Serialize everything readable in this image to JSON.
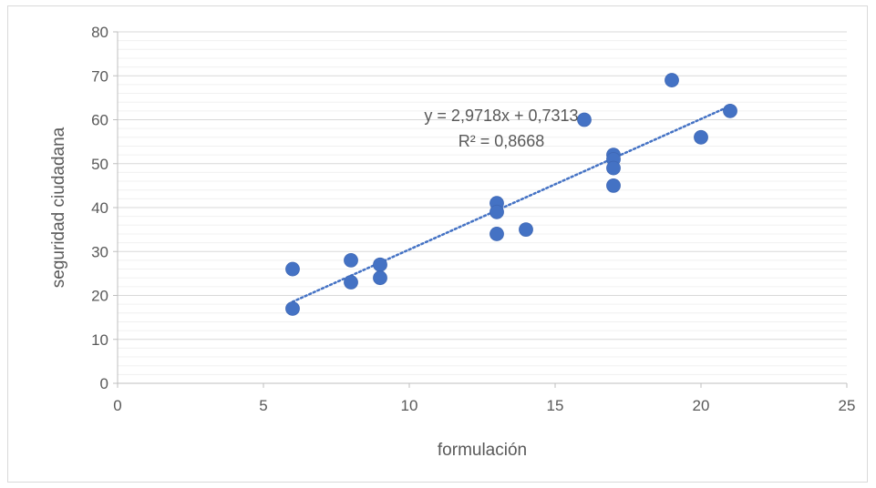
{
  "chart_data": {
    "type": "scatter",
    "title": "",
    "xlabel": "formulación",
    "ylabel": "seguridad ciudadana",
    "xlim": [
      0,
      25
    ],
    "ylim": [
      0,
      80
    ],
    "x_ticks": [
      0,
      5,
      10,
      15,
      20,
      25
    ],
    "y_ticks": [
      0,
      10,
      20,
      30,
      40,
      50,
      60,
      70,
      80
    ],
    "grid": true,
    "legend": "none",
    "marker_color": "#4472c4",
    "trendline_color": "#4472c4",
    "series": [
      {
        "points": [
          {
            "x": 6,
            "y": 26
          },
          {
            "x": 6,
            "y": 17
          },
          {
            "x": 8,
            "y": 28
          },
          {
            "x": 8,
            "y": 23
          },
          {
            "x": 9,
            "y": 27
          },
          {
            "x": 9,
            "y": 24
          },
          {
            "x": 13,
            "y": 41
          },
          {
            "x": 13,
            "y": 39
          },
          {
            "x": 13,
            "y": 34
          },
          {
            "x": 14,
            "y": 35
          },
          {
            "x": 16,
            "y": 60
          },
          {
            "x": 17,
            "y": 52
          },
          {
            "x": 17,
            "y": 51
          },
          {
            "x": 17,
            "y": 49
          },
          {
            "x": 17,
            "y": 45
          },
          {
            "x": 19,
            "y": 69
          },
          {
            "x": 20,
            "y": 56
          },
          {
            "x": 21,
            "y": 62
          }
        ]
      }
    ],
    "trendline": {
      "type": "linear",
      "slope": 2.9718,
      "intercept": 0.7313,
      "x_range": [
        6,
        21
      ],
      "equation_label": "y = 2,9718x + 0,7313",
      "r2_label": "R² = 0,8668"
    }
  }
}
